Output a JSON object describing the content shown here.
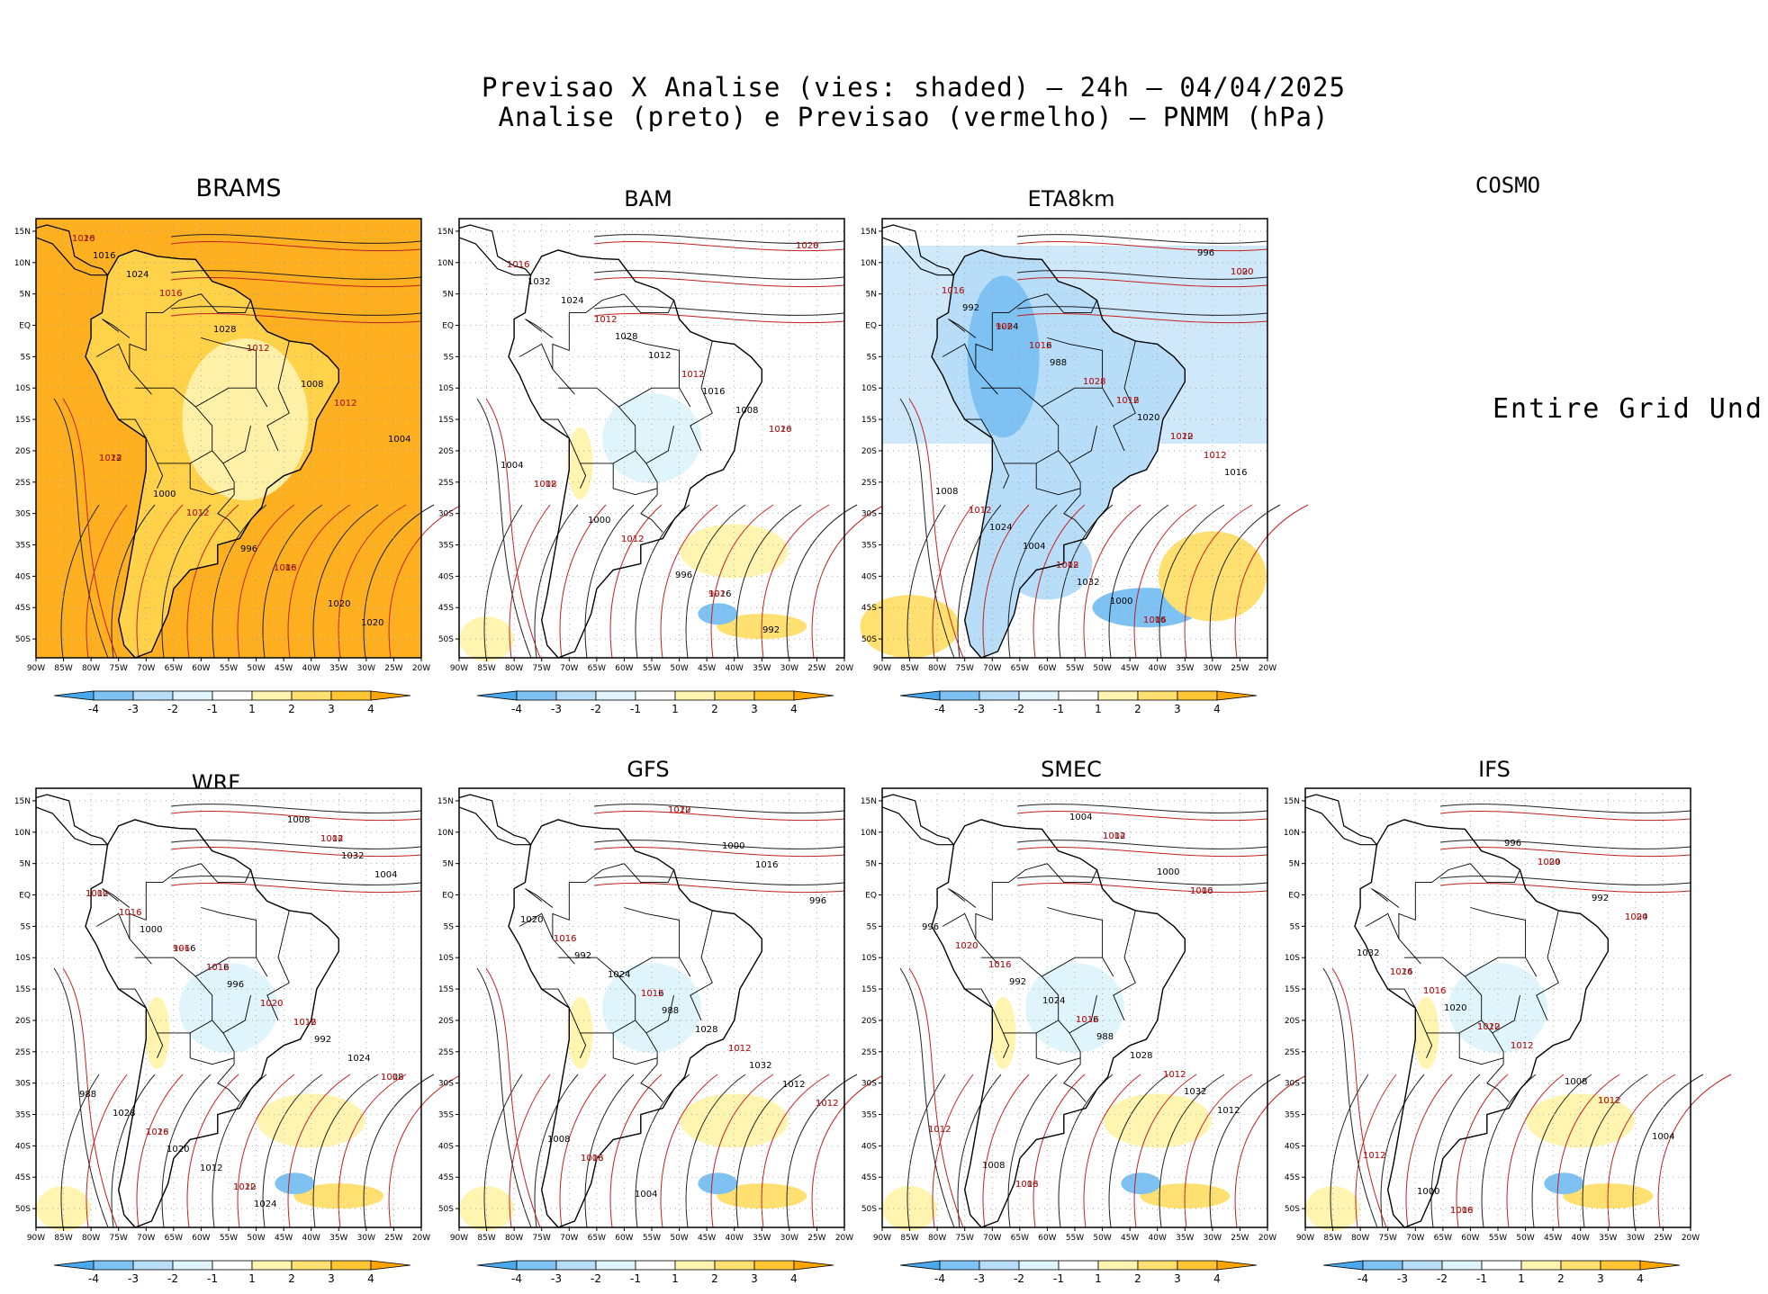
{
  "header": {
    "line1": "Previsao X Analise (vies: shaded) – 24h – 04/04/2025",
    "line2": "Analise (preto) e Previsao (vermelho) – PNMM (hPa)"
  },
  "axes": {
    "lat_ticks": [
      "15N",
      "10N",
      "5N",
      "EQ",
      "5S",
      "10S",
      "15S",
      "20S",
      "25S",
      "30S",
      "35S",
      "40S",
      "45S",
      "50S"
    ],
    "lon_ticks": [
      "90W",
      "85W",
      "80W",
      "75W",
      "70W",
      "65W",
      "60W",
      "55W",
      "50W",
      "45W",
      "40W",
      "35W",
      "30W",
      "25W",
      "20W"
    ]
  },
  "colorbar": {
    "labels": [
      "-4",
      "-3",
      "-2",
      "-1",
      "1",
      "2",
      "3",
      "4"
    ],
    "colors": [
      "#4aa8ec",
      "#7dc2f2",
      "#b8ddf8",
      "#e0f4fc",
      "#ffffff",
      "#fff5b0",
      "#ffe070",
      "#ffc533",
      "#ffa500"
    ]
  },
  "cosmo_message": "Entire Grid Und",
  "panels": [
    {
      "name": "BRAMS",
      "bias": "positive",
      "analysis_labels": [
        "1016",
        "1016",
        "1012",
        "1012",
        "1012",
        "1012",
        "1016",
        "1020",
        "1024",
        "1028",
        "1008",
        "1004",
        "1000",
        "996",
        "1020",
        "1016"
      ],
      "forecast_labels": [
        "1020",
        "1016",
        "1012",
        "1012",
        "1024",
        "1012",
        "1008"
      ]
    },
    {
      "name": "BAM",
      "bias": "mixed",
      "analysis_labels": [
        "1016",
        "1012",
        "1012",
        "1016",
        "1012",
        "1012",
        "1016",
        "1020",
        "1024",
        "1012",
        "1008",
        "1004",
        "1000",
        "996",
        "992",
        "1032",
        "1028",
        "1016"
      ],
      "forecast_labels": [
        "1016",
        "1012",
        "1012",
        "1020",
        "1008",
        "1012",
        "992",
        "1028"
      ]
    },
    {
      "name": "ETA8km",
      "bias": "negative",
      "analysis_labels": [
        "1016",
        "1016",
        "1012",
        "1012",
        "1012",
        "1012",
        "1016",
        "1020",
        "1024",
        "1028",
        "1012",
        "1008",
        "1004",
        "1000",
        "996",
        "992",
        "988",
        "1020",
        "1016",
        "1024",
        "1032"
      ],
      "forecast_labels": [
        "1016",
        "1012",
        "1016",
        "1012",
        "1012",
        "1008",
        "1004",
        "1000",
        "996",
        "1028",
        "1020"
      ]
    },
    {
      "name": "COSMO",
      "bias": "undefined",
      "analysis_labels": [],
      "forecast_labels": []
    },
    {
      "name": "WRF",
      "bias": "mixed",
      "analysis_labels": [
        "1016",
        "1016",
        "1012",
        "1008",
        "1016",
        "1012",
        "1012",
        "1012",
        "1016",
        "1020",
        "1024",
        "1028",
        "1012",
        "1008",
        "1004",
        "1000",
        "996",
        "992",
        "988",
        "1020",
        "1024",
        "1032"
      ],
      "forecast_labels": [
        "1016",
        "1012",
        "1016",
        "1012",
        "1028",
        "1020",
        "1004",
        "1000",
        "996",
        "1020"
      ]
    },
    {
      "name": "GFS",
      "bias": "mixed",
      "analysis_labels": [
        "1016",
        "1016",
        "1012",
        "1012",
        "1016",
        "1012",
        "1016",
        "1020",
        "1024",
        "1028",
        "1012",
        "1008",
        "1004",
        "1000",
        "996",
        "992",
        "988",
        "1032"
      ],
      "forecast_labels": [
        "1016",
        "1012",
        "1012",
        "1012",
        "1008",
        "1020"
      ]
    },
    {
      "name": "SMEC",
      "bias": "mixed",
      "analysis_labels": [
        "1016",
        "1016",
        "1012",
        "1012",
        "1016",
        "1012",
        "1016",
        "1020",
        "1024",
        "1028",
        "1012",
        "1008",
        "1004",
        "1000",
        "996",
        "992",
        "988",
        "1032"
      ],
      "forecast_labels": [
        "1016",
        "1012",
        "1012",
        "1012",
        "1008",
        "1004",
        "1000",
        "1020"
      ]
    },
    {
      "name": "IFS",
      "bias": "mixed",
      "analysis_labels": [
        "1016",
        "1012",
        "1012",
        "1012",
        "1016",
        "1020",
        "1024",
        "1016",
        "1012",
        "1008",
        "1004",
        "1000",
        "996",
        "992",
        "1032",
        "1020"
      ],
      "forecast_labels": [
        "1016",
        "1012",
        "1012",
        "1012",
        "1008",
        "1004",
        "1000",
        "1024",
        "1020"
      ]
    }
  ]
}
